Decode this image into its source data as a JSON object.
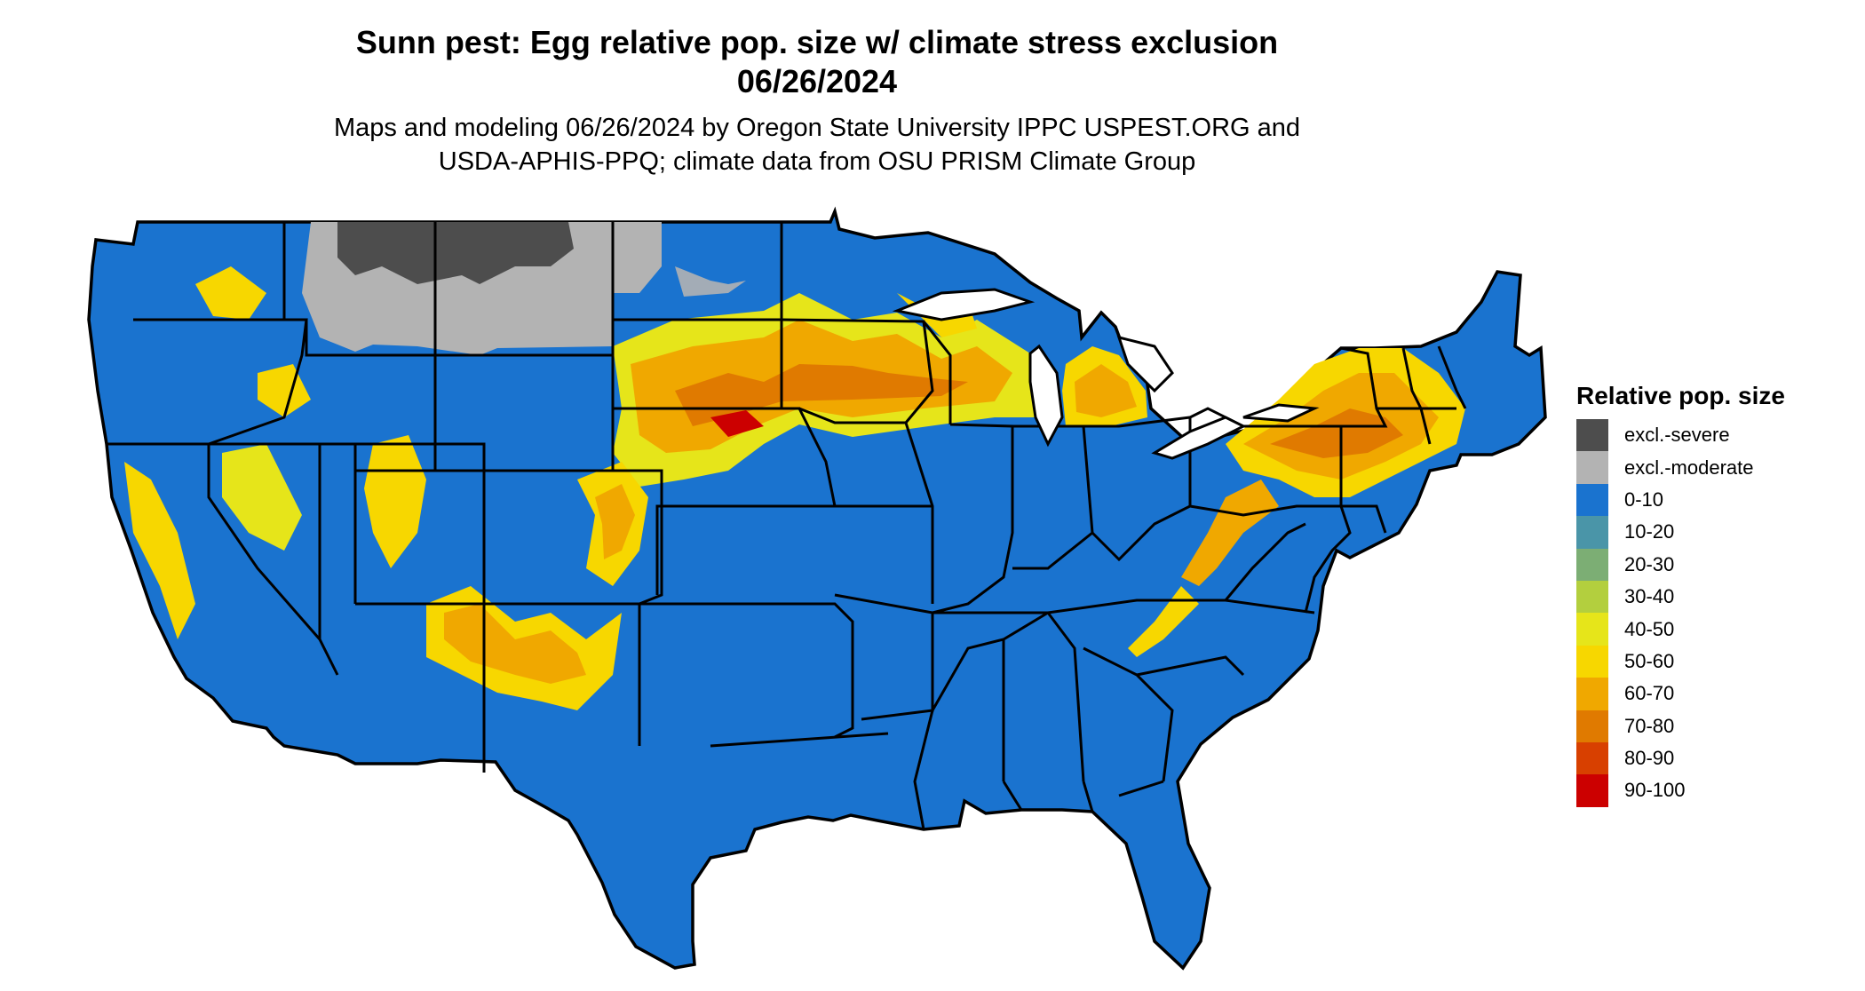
{
  "header": {
    "title_line1": "Sunn pest: Egg relative pop. size w/ climate stress exclusion",
    "title_line2": "06/26/2024",
    "subtitle_line1": "Maps and modeling 06/26/2024 by Oregon State University IPPC USPEST.ORG and",
    "subtitle_line2": "USDA-APHIS-PPQ; climate data from OSU PRISM Climate Group"
  },
  "legend": {
    "title": "Relative pop. size",
    "items": [
      {
        "label": "excl.-severe",
        "color": "#4d4d4d"
      },
      {
        "label": "excl.-moderate",
        "color": "#b3b3b3"
      },
      {
        "label": "0-10",
        "color": "#1a73cf"
      },
      {
        "label": "10-20",
        "color": "#4a95a8"
      },
      {
        "label": "20-30",
        "color": "#7cae74"
      },
      {
        "label": "30-40",
        "color": "#b3cf3e"
      },
      {
        "label": "40-50",
        "color": "#e6e51a"
      },
      {
        "label": "50-60",
        "color": "#f7d700"
      },
      {
        "label": "60-70",
        "color": "#f0a800"
      },
      {
        "label": "70-80",
        "color": "#e07a00"
      },
      {
        "label": "80-90",
        "color": "#d84000"
      },
      {
        "label": "90-100",
        "color": "#cc0000"
      }
    ]
  },
  "map": {
    "base_color": "#1a73cf",
    "border_color": "#000000"
  }
}
